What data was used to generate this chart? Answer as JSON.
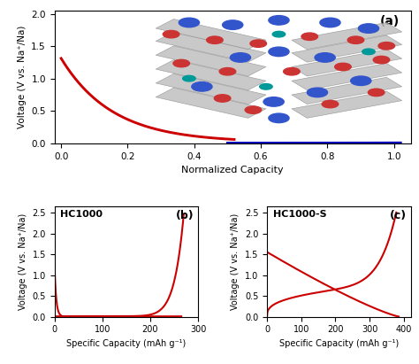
{
  "title_a": "(a)",
  "title_b": "(b)",
  "title_c": "(c)",
  "label_b": "HC1000",
  "label_c": "HC1000-S",
  "ylabel_a": "Voltage (V vs. Na⁺/Na)",
  "xlabel_a": "Normalized Capacity",
  "ylabel_bc": "Voltage (V vs. Na⁺/Na)",
  "xlabel_bc": "Specific Capacity (mAh g⁻¹)",
  "curve_color_red": "#cc0000",
  "curve_color_blue": "#0000bb",
  "ylim_a": [
    0.0,
    2.05
  ],
  "xlim_a": [
    -0.02,
    1.05
  ],
  "ylim_bc": [
    0.0,
    2.65
  ],
  "xlim_b": [
    0,
    300
  ],
  "xlim_c": [
    0,
    420
  ],
  "xticks_a": [
    0.0,
    0.2,
    0.4,
    0.6,
    0.8,
    1.0
  ],
  "xticks_b": [
    0,
    100,
    200,
    300
  ],
  "xticks_c": [
    0,
    100,
    200,
    300,
    400
  ],
  "yticks_a": [
    0.0,
    0.5,
    1.0,
    1.5,
    2.0
  ],
  "yticks_bc": [
    0.0,
    0.5,
    1.0,
    1.5,
    2.0,
    2.5
  ],
  "background_color": "#ffffff",
  "line_width": 1.5
}
